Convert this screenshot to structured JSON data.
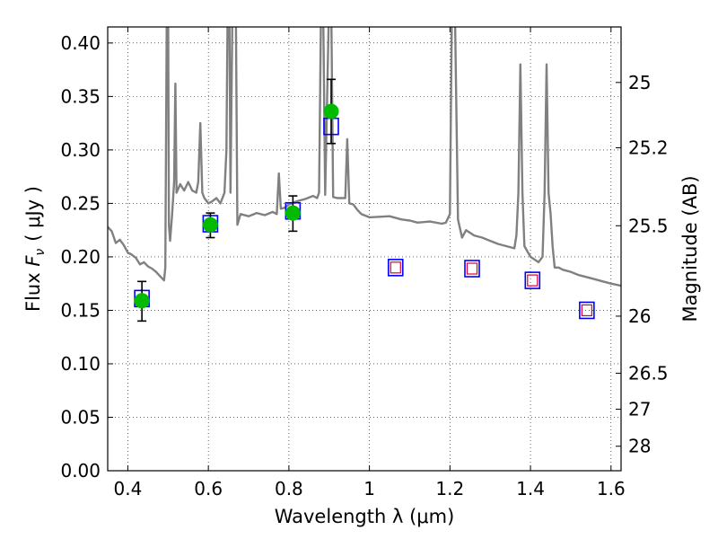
{
  "chart_data": {
    "type": "scatter",
    "title": "",
    "xlabel": "Wavelength  λ (μm)",
    "ylabel": "Flux  F_ν  ( μJy )",
    "ylabel_parts": {
      "prefix": "Flux ",
      "symbol": "F",
      "subscript": "ν",
      "unit": "( μJy )"
    },
    "y2label": "Magnitude (AB)",
    "xlim": [
      0.35,
      1.625
    ],
    "ylim": [
      0.0,
      0.415
    ],
    "x_scale": "linear",
    "grid": true,
    "grid_style": "dotted",
    "x_ticks": [
      0.4,
      0.6,
      0.8,
      1.0,
      1.2,
      1.4,
      1.6
    ],
    "x_tick_labels": [
      "0.4",
      "0.6",
      "0.8",
      "1",
      "1.2",
      "1.4",
      "1.6"
    ],
    "y_ticks": [
      0.0,
      0.05,
      0.1,
      0.15,
      0.2,
      0.25,
      0.3,
      0.35,
      0.4
    ],
    "y_tick_labels": [
      "0.00",
      "0.05",
      "0.10",
      "0.15",
      "0.20",
      "0.25",
      "0.30",
      "0.35",
      "0.40"
    ],
    "y2_ticks": [
      {
        "mag": 25.0,
        "label": "25"
      },
      {
        "mag": 25.2,
        "label": "25.2"
      },
      {
        "mag": 25.5,
        "label": "25.5"
      },
      {
        "mag": 26.0,
        "label": "26"
      },
      {
        "mag": 26.5,
        "label": "26.5"
      },
      {
        "mag": 27.0,
        "label": "27"
      },
      {
        "mag": 28.0,
        "label": "28"
      }
    ],
    "colors": {
      "spectrum": "#808080",
      "observed": "#00bb00",
      "model_box": "#0000ff",
      "upper_limit_box": "#dd0033",
      "error_bar": "#000000"
    },
    "series": [
      {
        "type": "line",
        "points": [
          [
            0.35,
            0.228
          ],
          [
            0.36,
            0.224
          ],
          [
            0.37,
            0.213
          ],
          [
            0.38,
            0.216
          ],
          [
            0.39,
            0.211
          ],
          [
            0.4,
            0.204
          ],
          [
            0.41,
            0.202
          ],
          [
            0.42,
            0.199
          ],
          [
            0.43,
            0.193
          ],
          [
            0.44,
            0.195
          ],
          [
            0.45,
            0.191
          ],
          [
            0.46,
            0.189
          ],
          [
            0.47,
            0.186
          ],
          [
            0.48,
            0.182
          ],
          [
            0.49,
            0.178
          ],
          [
            0.493,
            0.19
          ],
          [
            0.497,
            0.44
          ],
          [
            0.5,
            0.44
          ],
          [
            0.502,
            0.23
          ],
          [
            0.505,
            0.215
          ],
          [
            0.51,
            0.24
          ],
          [
            0.515,
            0.27
          ],
          [
            0.518,
            0.362
          ],
          [
            0.521,
            0.26
          ],
          [
            0.53,
            0.268
          ],
          [
            0.535,
            0.265
          ],
          [
            0.54,
            0.262
          ],
          [
            0.55,
            0.27
          ],
          [
            0.56,
            0.262
          ],
          [
            0.57,
            0.26
          ],
          [
            0.575,
            0.27
          ],
          [
            0.58,
            0.325
          ],
          [
            0.585,
            0.26
          ],
          [
            0.59,
            0.255
          ],
          [
            0.6,
            0.25
          ],
          [
            0.61,
            0.252
          ],
          [
            0.62,
            0.255
          ],
          [
            0.63,
            0.25
          ],
          [
            0.64,
            0.26
          ],
          [
            0.645,
            0.3
          ],
          [
            0.648,
            0.44
          ],
          [
            0.652,
            0.44
          ],
          [
            0.655,
            0.26
          ],
          [
            0.66,
            0.44
          ],
          [
            0.665,
            0.44
          ],
          [
            0.668,
            0.44
          ],
          [
            0.672,
            0.23
          ],
          [
            0.68,
            0.24
          ],
          [
            0.7,
            0.238
          ],
          [
            0.72,
            0.241
          ],
          [
            0.74,
            0.239
          ],
          [
            0.76,
            0.242
          ],
          [
            0.77,
            0.24
          ],
          [
            0.775,
            0.278
          ],
          [
            0.78,
            0.245
          ],
          [
            0.79,
            0.246
          ],
          [
            0.8,
            0.249
          ],
          [
            0.82,
            0.252
          ],
          [
            0.84,
            0.254
          ],
          [
            0.86,
            0.257
          ],
          [
            0.87,
            0.255
          ],
          [
            0.875,
            0.26
          ],
          [
            0.88,
            0.44
          ],
          [
            0.885,
            0.44
          ],
          [
            0.89,
            0.258
          ],
          [
            0.9,
            0.44
          ],
          [
            0.905,
            0.44
          ],
          [
            0.91,
            0.256
          ],
          [
            0.92,
            0.255
          ],
          [
            0.93,
            0.255
          ],
          [
            0.94,
            0.255
          ],
          [
            0.945,
            0.31
          ],
          [
            0.95,
            0.25
          ],
          [
            0.96,
            0.249
          ],
          [
            0.97,
            0.244
          ],
          [
            0.98,
            0.24
          ],
          [
            1.0,
            0.237
          ],
          [
            1.05,
            0.238
          ],
          [
            1.08,
            0.235
          ],
          [
            1.1,
            0.234
          ],
          [
            1.12,
            0.232
          ],
          [
            1.15,
            0.233
          ],
          [
            1.18,
            0.231
          ],
          [
            1.19,
            0.232
          ],
          [
            1.2,
            0.24
          ],
          [
            1.205,
            0.44
          ],
          [
            1.212,
            0.44
          ],
          [
            1.22,
            0.235
          ],
          [
            1.23,
            0.218
          ],
          [
            1.24,
            0.225
          ],
          [
            1.26,
            0.22
          ],
          [
            1.28,
            0.218
          ],
          [
            1.3,
            0.215
          ],
          [
            1.32,
            0.212
          ],
          [
            1.34,
            0.21
          ],
          [
            1.36,
            0.208
          ],
          [
            1.365,
            0.22
          ],
          [
            1.37,
            0.26
          ],
          [
            1.375,
            0.38
          ],
          [
            1.38,
            0.26
          ],
          [
            1.385,
            0.21
          ],
          [
            1.4,
            0.2
          ],
          [
            1.42,
            0.195
          ],
          [
            1.43,
            0.2
          ],
          [
            1.435,
            0.26
          ],
          [
            1.44,
            0.38
          ],
          [
            1.445,
            0.26
          ],
          [
            1.45,
            0.24
          ],
          [
            1.455,
            0.21
          ],
          [
            1.46,
            0.19
          ],
          [
            1.47,
            0.19
          ],
          [
            1.48,
            0.188
          ],
          [
            1.5,
            0.186
          ],
          [
            1.52,
            0.183
          ],
          [
            1.55,
            0.18
          ],
          [
            1.58,
            0.177
          ],
          [
            1.6,
            0.175
          ],
          [
            1.625,
            0.173
          ]
        ]
      },
      {
        "type": "scatter",
        "marker": "circle",
        "points": [
          {
            "x": 0.435,
            "y": 0.159,
            "err_low": 0.019,
            "err_high": 0.018
          },
          {
            "x": 0.605,
            "y": 0.23,
            "err_low": 0.012,
            "err_high": 0.011
          },
          {
            "x": 0.81,
            "y": 0.241,
            "err_low": 0.017,
            "err_high": 0.016
          },
          {
            "x": 0.905,
            "y": 0.336,
            "err_low": 0.03,
            "err_high": 0.03
          }
        ]
      },
      {
        "type": "scatter",
        "marker": "open-square",
        "points": [
          {
            "x": 0.435,
            "y": 0.161
          },
          {
            "x": 0.605,
            "y": 0.231
          },
          {
            "x": 0.81,
            "y": 0.243
          },
          {
            "x": 0.905,
            "y": 0.322
          },
          {
            "x": 1.065,
            "y": 0.19
          },
          {
            "x": 1.255,
            "y": 0.189
          },
          {
            "x": 1.405,
            "y": 0.178
          },
          {
            "x": 1.54,
            "y": 0.15
          }
        ]
      },
      {
        "type": "scatter",
        "marker": "open-square-small",
        "points": [
          {
            "x": 1.065,
            "y": 0.19
          },
          {
            "x": 1.255,
            "y": 0.189
          },
          {
            "x": 1.405,
            "y": 0.178
          },
          {
            "x": 1.54,
            "y": 0.15
          }
        ]
      }
    ]
  }
}
